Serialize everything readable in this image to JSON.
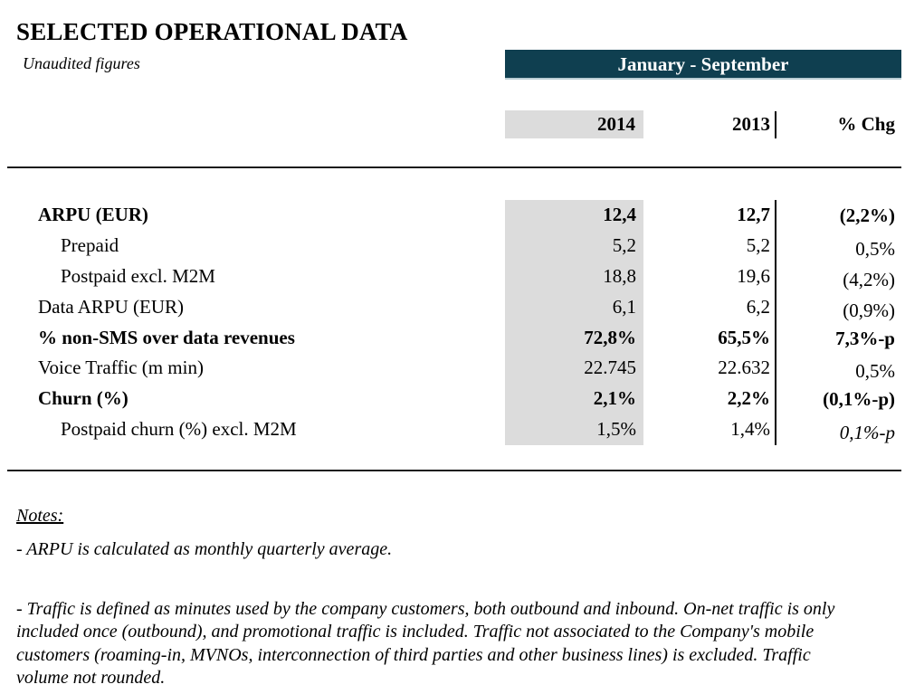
{
  "header": {
    "title": "SELECTED OPERATIONAL DATA",
    "subtitle": "Unaudited figures",
    "period_label": "January - September"
  },
  "columns": {
    "c2014": "2014",
    "c2013": "2013",
    "chg": "% Chg"
  },
  "table": {
    "rows": [
      {
        "label": "ARPU (EUR)",
        "v2014": "12,4",
        "v2013": "12,7",
        "chg": "(2,2%)",
        "bold": true,
        "indent": false,
        "chg_italic": false
      },
      {
        "label": "Prepaid",
        "v2014": "5,2",
        "v2013": "5,2",
        "chg": "0,5%",
        "bold": false,
        "indent": true,
        "chg_italic": false
      },
      {
        "label": "Postpaid excl. M2M",
        "v2014": "18,8",
        "v2013": "19,6",
        "chg": "(4,2%)",
        "bold": false,
        "indent": true,
        "chg_italic": false
      },
      {
        "label": "Data ARPU (EUR)",
        "v2014": "6,1",
        "v2013": "6,2",
        "chg": "(0,9%)",
        "bold": false,
        "indent": false,
        "chg_italic": false
      },
      {
        "label": "% non-SMS over data revenues",
        "v2014": "72,8%",
        "v2013": "65,5%",
        "chg": "7,3%-p",
        "bold": true,
        "indent": false,
        "chg_italic": false
      },
      {
        "label": "Voice Traffic (m min)",
        "v2014": "22.745",
        "v2013": "22.632",
        "chg": "0,5%",
        "bold": false,
        "indent": false,
        "chg_italic": false
      },
      {
        "label": "Churn (%)",
        "v2014": "2,1%",
        "v2013": "2,2%",
        "chg": "(0,1%-p)",
        "bold": true,
        "indent": false,
        "chg_italic": false
      },
      {
        "label": "Postpaid churn (%) excl. M2M",
        "v2014": "1,5%",
        "v2013": "1,4%",
        "chg": "0,1%-p",
        "bold": false,
        "indent": true,
        "chg_italic": true
      }
    ]
  },
  "notes": {
    "heading": "Notes:",
    "arpu_note": "- ARPU is calculated as monthly quarterly average.",
    "traffic_note_lines": [
      "- Traffic is defined as minutes used by the company customers, both outbound and inbound. On-net traffic is only",
      "included once (outbound), and promotional traffic is included. Traffic not associated to the Company's mobile",
      "customers (roaming-in, MVNOs, interconnection of third parties and other business lines) is excluded. Traffic",
      "volume not rounded."
    ]
  },
  "colors": {
    "banner_bg": "#0f3f50",
    "banner_text": "#ffffff",
    "highlight_col": "#dcdcdc",
    "text": "#000000"
  }
}
